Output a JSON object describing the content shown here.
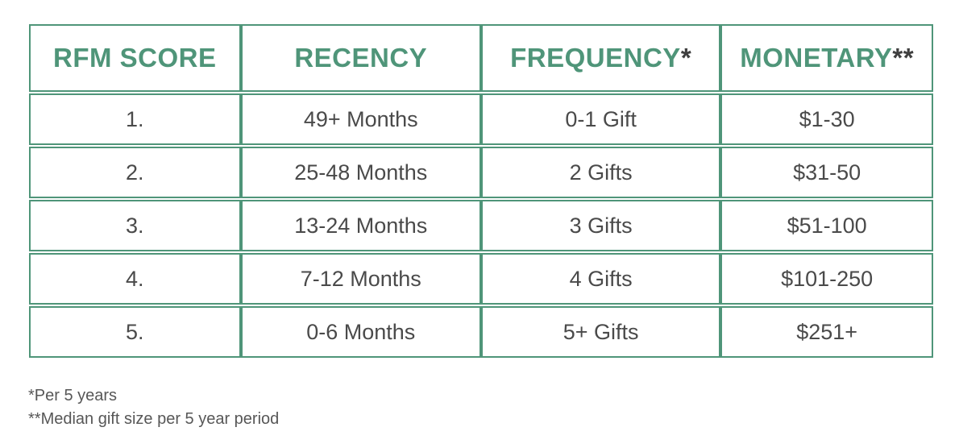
{
  "chart_data": {
    "type": "table",
    "columns": [
      "RFM SCORE",
      "RECENCY",
      "FREQUENCY*",
      "MONETARY**"
    ],
    "rows": [
      [
        "1.",
        "49+ Months",
        "0-1 Gift",
        "$1-30"
      ],
      [
        "2.",
        "25-48 Months",
        "2 Gifts",
        "$31-50"
      ],
      [
        "3.",
        "13-24 Months",
        "3 Gifts",
        "$51-100"
      ],
      [
        "4.",
        "7-12 Months",
        "4 Gifts",
        "$101-250"
      ],
      [
        "5.",
        "0-6 Months",
        "5+ Gifts",
        "$251+"
      ]
    ],
    "title": "",
    "legend": "off",
    "grid": "table borders on, green"
  },
  "header_parts": [
    {
      "label": "RFM SCORE",
      "suffix": "",
      "slug": "rfm-score"
    },
    {
      "label": "RECENCY",
      "suffix": "",
      "slug": "recency"
    },
    {
      "label": "FREQUENCY",
      "suffix": "*",
      "slug": "frequency"
    },
    {
      "label": "MONETARY",
      "suffix": "**",
      "slug": "monetary"
    }
  ],
  "footnotes": {
    "line1": "*Per 5 years",
    "line2": "**Median gift size per 5 year period"
  },
  "colors": {
    "accent_green": "#4F9579",
    "cell_text": "#4A4A4A",
    "header_asterisk": "#3F3F3F",
    "footnote_text": "#575757",
    "background": "#FFFFFF"
  }
}
